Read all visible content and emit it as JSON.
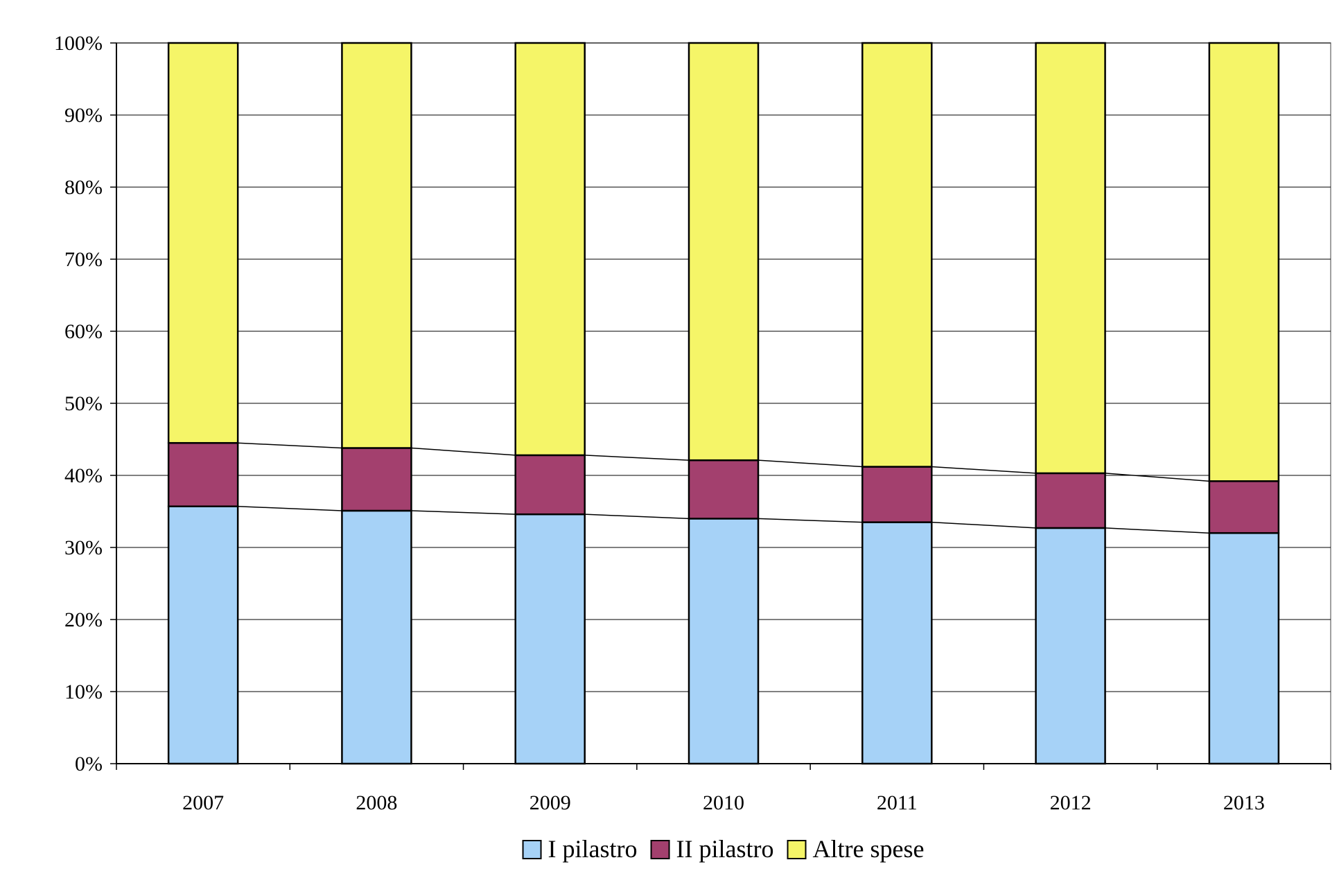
{
  "chart_data": {
    "type": "bar",
    "stacked": true,
    "percent_stacked": true,
    "categories": [
      "2007",
      "2008",
      "2009",
      "2010",
      "2011",
      "2012",
      "2013"
    ],
    "series": [
      {
        "name": "I pilastro",
        "color": "#a6d2f7",
        "values": [
          35.7,
          35.1,
          34.6,
          34.0,
          33.5,
          32.7,
          32.0
        ]
      },
      {
        "name": "II pilastro",
        "color": "#a3406e",
        "values": [
          8.8,
          8.7,
          8.2,
          8.1,
          7.7,
          7.6,
          7.2
        ]
      },
      {
        "name": "Altre spese",
        "color": "#f5f568",
        "values": [
          55.5,
          56.2,
          57.2,
          57.9,
          58.8,
          59.7,
          60.8
        ]
      }
    ],
    "y_ticks": [
      "0%",
      "10%",
      "20%",
      "30%",
      "40%",
      "50%",
      "60%",
      "70%",
      "80%",
      "90%",
      "100%"
    ],
    "ylim": [
      0,
      100
    ],
    "grid": true,
    "legend_position": "bottom",
    "connector_lines": true,
    "title": "",
    "xlabel": "",
    "ylabel": ""
  }
}
